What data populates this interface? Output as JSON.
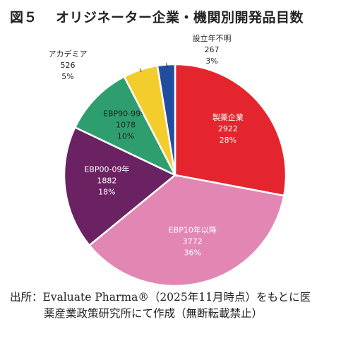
{
  "title": {
    "figure_number": "図５",
    "text": "オリジネーター企業・機関別開発品目数"
  },
  "source": {
    "line1": "出所：Evaluate Pharma®（2025年11月時点）をもとに医",
    "line2": "薬産業政策研究所にて作成（無断転載禁止）"
  },
  "chart_data": {
    "type": "pie",
    "title": "オリジネーター企業・機関別開発品目数",
    "start_angle_deg": 0,
    "direction": "clockwise",
    "slices": [
      {
        "label": "製薬企業",
        "value": 2922,
        "percent": "28%",
        "color": "#e5252d",
        "label_inside": true,
        "text_color": "#ffffff"
      },
      {
        "label": "EBP10年以降",
        "value": 3772,
        "percent": "36%",
        "color": "#e287b4",
        "label_inside": true,
        "text_color": "#ffffff"
      },
      {
        "label": "EBP00-09年",
        "value": 1882,
        "percent": "18%",
        "color": "#6b2263",
        "label_inside": true,
        "text_color": "#ffffff"
      },
      {
        "label": "EBP90-99年",
        "value": 1078,
        "percent": "10%",
        "color": "#2e9e6f",
        "label_inside": true,
        "text_color": "#222222"
      },
      {
        "label": "アカデミア",
        "value": 526,
        "percent": "5%",
        "color": "#f3cd2c",
        "label_inside": false,
        "text_color": "#222222"
      },
      {
        "label": "設立年不明",
        "value": 267,
        "percent": "3%",
        "color": "#1f4ea1",
        "label_inside": false,
        "text_color": "#222222"
      }
    ]
  }
}
